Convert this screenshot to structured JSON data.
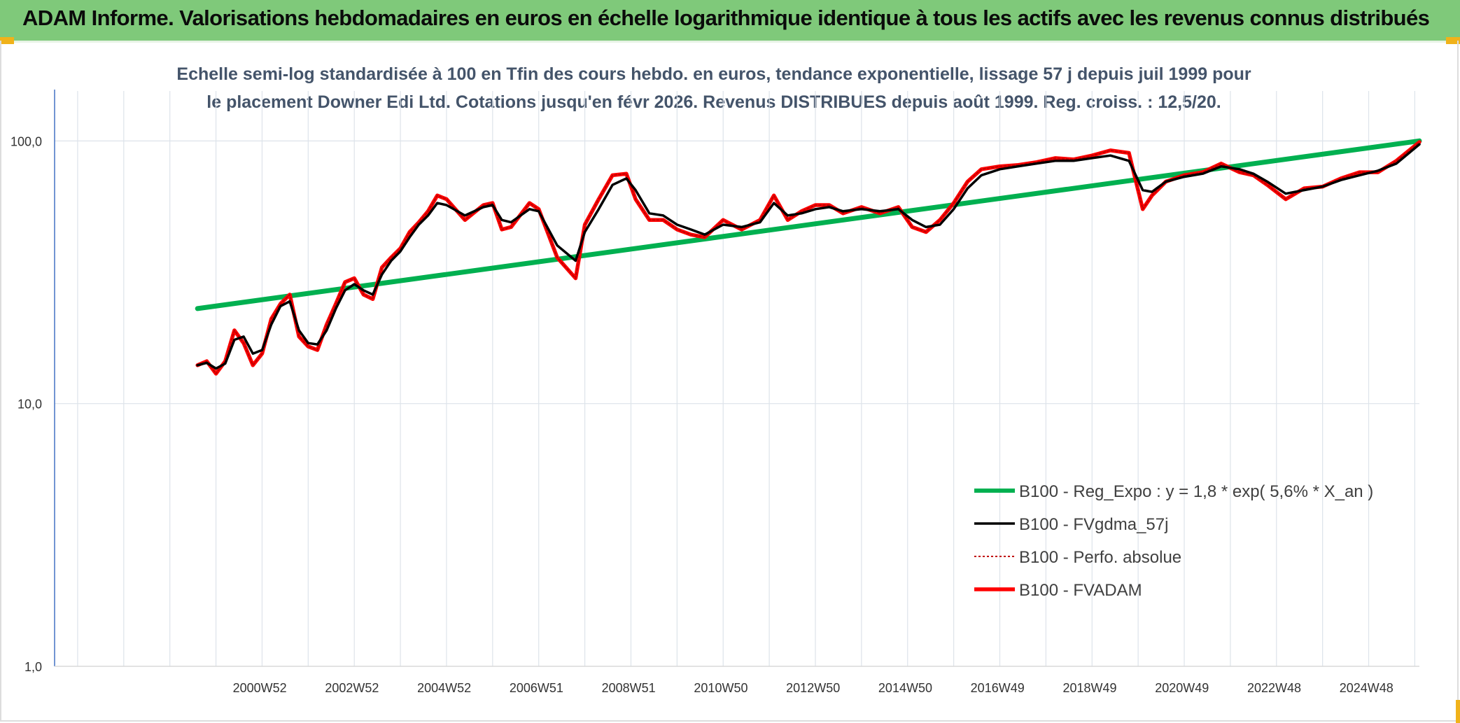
{
  "header": {
    "title": "ADAM Informe. Valorisations hebdomadaires en euros en échelle logarithmique identique à tous les actifs avec les revenus connus distribués"
  },
  "colors": {
    "header_bg": "#7fc97a",
    "regression": "#00b050",
    "smoothed": "#000000",
    "absolute": "#c00000",
    "fvadam": "#ff0000"
  },
  "chart_data": {
    "type": "line",
    "title": "Echelle semi-log standardisée à 100 en Tfin des cours hebdo. en euros, tendance exponentielle, lissage 57 j depuis juil 1999 pour le placement Downer Edi Ltd. Cotations jusqu'en févr 2026. Revenus DISTRIBUES depuis août 1999. Reg. croiss. : 12,5/20.",
    "y_scale": "log",
    "ylim": [
      1,
      100
    ],
    "y_ticks": [
      "1,0",
      "10,0",
      "100,0"
    ],
    "x_tick_labels": [
      "2000W52",
      "2002W52",
      "2004W52",
      "2006W51",
      "2008W51",
      "2010W50",
      "2012W50",
      "2014W50",
      "2016W49",
      "2018W49",
      "2020W49",
      "2022W48",
      "2024W48"
    ],
    "grid": true,
    "legend_position": "right",
    "x": [
      1999.6,
      1999.8,
      2000.0,
      2000.2,
      2000.4,
      2000.6,
      2000.8,
      2001.0,
      2001.2,
      2001.4,
      2001.6,
      2001.8,
      2002.0,
      2002.2,
      2002.4,
      2002.6,
      2002.8,
      2003.0,
      2003.2,
      2003.4,
      2003.6,
      2003.8,
      2004.0,
      2004.2,
      2004.4,
      2004.6,
      2004.8,
      2005.0,
      2005.4,
      2005.8,
      2006.0,
      2006.2,
      2006.4,
      2006.8,
      2007.0,
      2007.4,
      2007.8,
      2008.0,
      2008.3,
      2008.6,
      2008.9,
      2009.1,
      2009.4,
      2009.7,
      2010.0,
      2010.3,
      2010.6,
      2011.0,
      2011.4,
      2011.8,
      2012.1,
      2012.4,
      2012.7,
      2013.0,
      2013.3,
      2013.6,
      2014.0,
      2014.4,
      2014.8,
      2015.1,
      2015.4,
      2015.7,
      2016.0,
      2016.3,
      2016.6,
      2017.0,
      2017.4,
      2017.8,
      2018.2,
      2018.6,
      2019.0,
      2019.4,
      2019.8,
      2020.1,
      2020.3,
      2020.6,
      2021.0,
      2021.4,
      2021.8,
      2022.2,
      2022.5,
      2022.8,
      2023.2,
      2023.6,
      2024.0,
      2024.4,
      2024.8,
      2025.2,
      2025.6,
      2026.1
    ],
    "series": [
      {
        "name": "B100 - Reg_Expo : y = 1,8 * exp( 5,6% *  X_an )",
        "x": [
          1999.6,
          2026.1
        ],
        "values": [
          23.0,
          100.0
        ]
      },
      {
        "name": "B100 - FVgdma_57j",
        "values": [
          14.0,
          14.3,
          13.6,
          14.2,
          17.5,
          18.0,
          15.5,
          16.0,
          20.0,
          23.5,
          24.5,
          19.0,
          17.0,
          16.8,
          19.0,
          23.0,
          27.0,
          28.5,
          27.0,
          26.0,
          31.0,
          35.0,
          38.0,
          43.0,
          48.0,
          52.0,
          58.0,
          57.0,
          52.0,
          56.0,
          57.0,
          50.0,
          49.0,
          55.0,
          54.0,
          40.0,
          35.0,
          45.0,
          55.0,
          68.0,
          72.0,
          65.0,
          53.0,
          52.0,
          48.0,
          46.0,
          44.0,
          48.0,
          47.0,
          49.0,
          58.0,
          52.0,
          53.0,
          55.0,
          56.0,
          54.0,
          55.0,
          54.0,
          55.0,
          50.0,
          47.0,
          48.0,
          55.0,
          66.0,
          74.0,
          78.0,
          80.0,
          82.0,
          84.0,
          84.0,
          86.0,
          88.0,
          84.0,
          65.0,
          64.0,
          70.0,
          73.0,
          75.0,
          80.0,
          78.0,
          75.0,
          70.0,
          63.0,
          65.0,
          67.0,
          71.0,
          74.0,
          77.0,
          82.0,
          97.0
        ]
      },
      {
        "name": "B100 - Perfo. absolue",
        "values": [
          14.0,
          14.5,
          13.0,
          14.5,
          19.0,
          17.0,
          14.0,
          15.5,
          21.0,
          24.0,
          26.0,
          18.0,
          16.5,
          16.0,
          20.0,
          24.0,
          29.0,
          30.0,
          26.0,
          25.0,
          33.0,
          36.0,
          39.0,
          45.0,
          49.0,
          54.0,
          62.0,
          60.0,
          50.0,
          57.0,
          58.0,
          46.0,
          47.0,
          58.0,
          55.0,
          36.0,
          30.0,
          48.0,
          60.0,
          74.0,
          75.0,
          60.0,
          50.0,
          50.0,
          46.0,
          44.0,
          43.0,
          50.0,
          46.0,
          50.0,
          62.0,
          50.0,
          54.0,
          57.0,
          57.0,
          53.0,
          56.0,
          53.0,
          56.0,
          47.0,
          45.0,
          50.0,
          58.0,
          70.0,
          78.0,
          80.0,
          81.0,
          83.0,
          86.0,
          85.0,
          88.0,
          92.0,
          90.0,
          55.0,
          62.0,
          70.0,
          74.0,
          76.0,
          82.0,
          76.0,
          74.0,
          68.0,
          60.0,
          66.0,
          67.0,
          72.0,
          76.0,
          76.0,
          84.0,
          99.0
        ]
      },
      {
        "name": "B100 - FVADAM",
        "values": [
          14.0,
          14.5,
          13.0,
          14.5,
          19.0,
          17.0,
          14.0,
          15.5,
          21.0,
          24.0,
          26.0,
          18.0,
          16.5,
          16.0,
          20.0,
          24.0,
          29.0,
          30.0,
          26.0,
          25.0,
          33.0,
          36.0,
          39.0,
          45.0,
          49.0,
          54.0,
          62.0,
          60.0,
          50.0,
          57.0,
          58.0,
          46.0,
          47.0,
          58.0,
          55.0,
          36.0,
          30.0,
          48.0,
          60.0,
          74.0,
          75.0,
          60.0,
          50.0,
          50.0,
          46.0,
          44.0,
          43.0,
          50.0,
          46.0,
          50.0,
          62.0,
          50.0,
          54.0,
          57.0,
          57.0,
          53.0,
          56.0,
          53.0,
          56.0,
          47.0,
          45.0,
          50.0,
          58.0,
          70.0,
          78.0,
          80.0,
          81.0,
          83.0,
          86.0,
          85.0,
          88.0,
          92.0,
          90.0,
          55.0,
          62.0,
          70.0,
          74.0,
          76.0,
          82.0,
          76.0,
          74.0,
          68.0,
          60.0,
          66.0,
          67.0,
          72.0,
          76.0,
          76.0,
          84.0,
          99.0
        ]
      }
    ]
  }
}
